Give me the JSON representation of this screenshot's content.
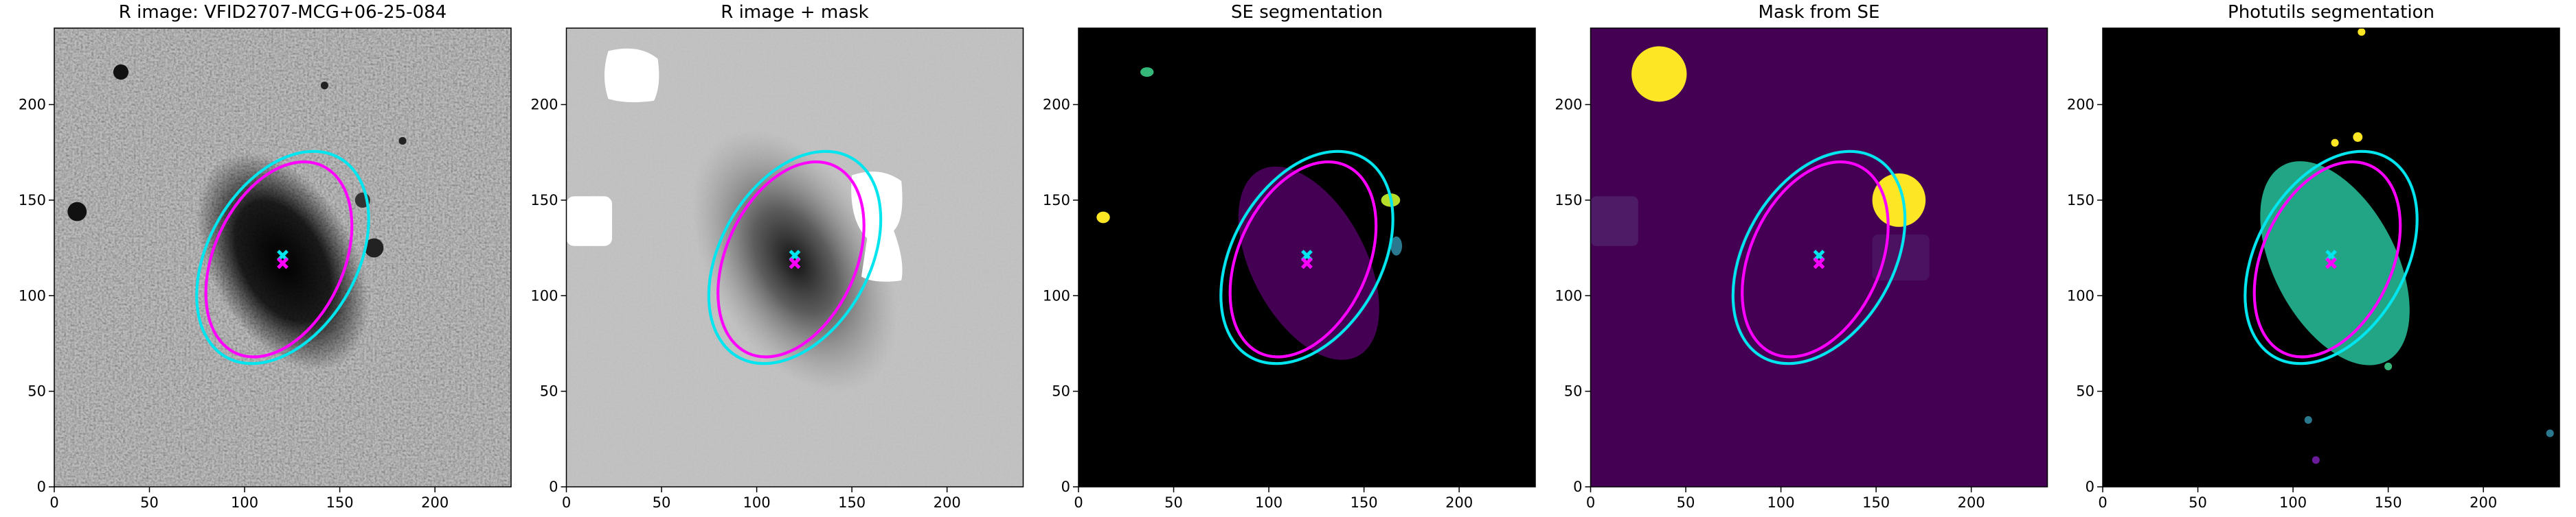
{
  "chart_data": [
    {
      "type": "image",
      "title": "R image: VFID2707-MCG+06-25-084",
      "xlim": [
        0,
        240
      ],
      "ylim": [
        0,
        240
      ],
      "xticks": [
        0,
        50,
        100,
        150,
        200
      ],
      "yticks": [
        0,
        50,
        100,
        150,
        200
      ]
    },
    {
      "type": "image",
      "title": "R image + mask",
      "xlim": [
        0,
        240
      ],
      "ylim": [
        0,
        240
      ],
      "xticks": [
        0,
        50,
        100,
        150,
        200
      ],
      "yticks": [
        0,
        50,
        100,
        150,
        200
      ]
    },
    {
      "type": "image",
      "title": "SE segmentation",
      "xlim": [
        0,
        240
      ],
      "ylim": [
        0,
        240
      ],
      "xticks": [
        0,
        50,
        100,
        150,
        200
      ],
      "yticks": [
        0,
        50,
        100,
        150,
        200
      ]
    },
    {
      "type": "image",
      "title": "Mask from SE",
      "xlim": [
        0,
        240
      ],
      "ylim": [
        0,
        240
      ],
      "xticks": [
        0,
        50,
        100,
        150,
        200
      ],
      "yticks": [
        0,
        50,
        100,
        150,
        200
      ]
    },
    {
      "type": "image",
      "title": "Photutils segmentation",
      "xlim": [
        0,
        240
      ],
      "ylim": [
        0,
        240
      ],
      "xticks": [
        0,
        50,
        100,
        150,
        200
      ],
      "yticks": [
        0,
        50,
        100,
        150,
        200
      ]
    }
  ],
  "overlay": {
    "ellipses": [
      {
        "x": 120,
        "y": 120,
        "width": 120,
        "height": 78,
        "angle": 60,
        "color": "#00e5ee"
      },
      {
        "x": 118,
        "y": 119,
        "width": 108,
        "height": 68,
        "angle": 65,
        "color": "#ff00ff"
      }
    ],
    "markers": [
      {
        "x": 120,
        "y": 121,
        "color": "#00e5ee"
      },
      {
        "x": 120,
        "y": 117,
        "color": "#ff00ff"
      }
    ]
  }
}
